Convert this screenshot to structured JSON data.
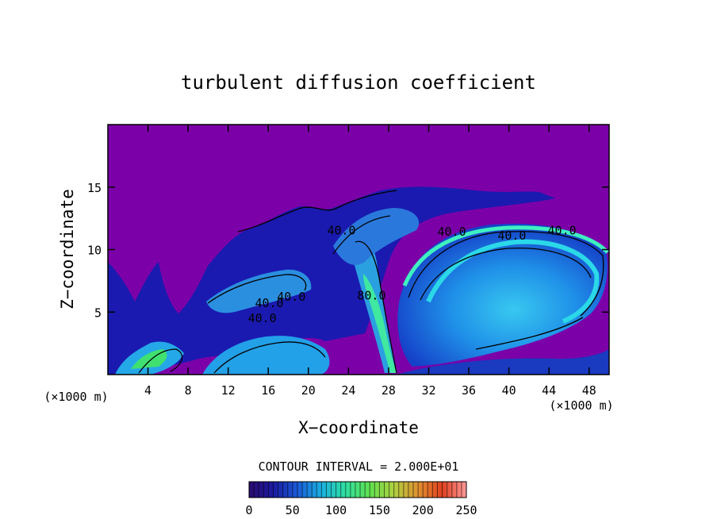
{
  "chart_data": {
    "type": "heatmap",
    "title": "turbulent diffusion coefficient",
    "xlabel": "X−coordinate",
    "ylabel": "Z−coordinate",
    "x_unit_left": "(×1000 m)",
    "x_unit_right": "(×1000 m)",
    "xlim": [
      0,
      50
    ],
    "ylim": [
      0,
      20
    ],
    "x_ticks": [
      4,
      8,
      12,
      16,
      20,
      24,
      28,
      32,
      36,
      40,
      44,
      48
    ],
    "y_ticks": [
      5,
      10,
      15
    ],
    "x_tick_labels": [
      "4",
      "8",
      "12",
      "16",
      "20",
      "24",
      "28",
      "32",
      "36",
      "40",
      "44",
      "48"
    ],
    "y_tick_labels": [
      "5",
      "10",
      "15"
    ],
    "contour_interval_text": "CONTOUR INTERVAL = 2.000E+01",
    "contour_labels": [
      {
        "text": "40.0",
        "x": 23.3,
        "z": 11.2
      },
      {
        "text": "40.0",
        "x": 34.3,
        "z": 11.1
      },
      {
        "text": "40.0",
        "x": 40.3,
        "z": 10.8
      },
      {
        "text": "40.0",
        "x": 45.3,
        "z": 11.2
      },
      {
        "text": "80.0",
        "x": 26.3,
        "z": 6.0
      },
      {
        "text": "40.0",
        "x": 16.1,
        "z": 5.4
      },
      {
        "text": "40.0",
        "x": 15.4,
        "z": 4.2
      },
      {
        "text": "40.0",
        "x": 18.3,
        "z": 5.9
      }
    ],
    "colorbar": {
      "min": 0,
      "max": 250,
      "tick_values": [
        0,
        50,
        100,
        150,
        200,
        250
      ],
      "tick_labels": [
        "0",
        "50",
        "100",
        "150",
        "200",
        "250"
      ],
      "colors": [
        "#2a0a6e",
        "#1a1aa0",
        "#1a5ad8",
        "#1ab0e0",
        "#30e0a0",
        "#60e050",
        "#b0d040",
        "#e09030",
        "#e04020",
        "#ff9999"
      ]
    },
    "background_color": "#7b00a8",
    "grid": false,
    "legend": "none"
  }
}
